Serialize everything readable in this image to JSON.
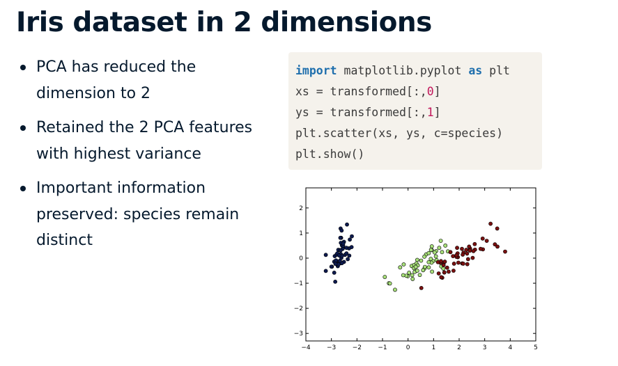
{
  "slide": {
    "title": "Iris dataset in 2 dimensions",
    "bullets": [
      "PCA has reduced the dimension to 2",
      "Retained the 2 PCA features with highest variance",
      "Important information preserved: species remain distinct"
    ]
  },
  "code": {
    "line1": {
      "kw1": "import",
      "mid": " matplotlib.pyplot ",
      "kw2": "as",
      "rest": " plt"
    },
    "line2": {
      "pre": "xs = transformed[:,",
      "num": "0",
      "post": "]"
    },
    "line3": {
      "pre": "ys = transformed[:,",
      "num": "1",
      "post": "]"
    },
    "line4": {
      "text": "plt.scatter(xs, ys, c=species)"
    },
    "line5": {
      "text": "plt.show()"
    }
  },
  "colors": {
    "setosa": "#0d1a4f",
    "versicolor": "#a8e07a",
    "virginica": "#7a1010",
    "keyword": "#1f6fad",
    "number": "#c2185b",
    "code_bg": "#f5f2ec"
  },
  "chart_data": {
    "type": "scatter",
    "title": "",
    "xlabel": "",
    "ylabel": "",
    "xlim": [
      -4,
      5
    ],
    "ylim": [
      -3.3,
      2.8
    ],
    "xticks": [
      -4,
      -3,
      -2,
      -1,
      0,
      1,
      2,
      3,
      4,
      5
    ],
    "xtick_labels": [
      "−4",
      "−3",
      "−2",
      "−1",
      "0",
      "1",
      "2",
      "3",
      "4",
      "5"
    ],
    "yticks": [
      -3,
      -2,
      -1,
      0,
      1,
      2
    ],
    "ytick_labels": [
      "−3",
      "−2",
      "−1",
      "0",
      "1",
      "2"
    ],
    "grid": false,
    "series": [
      {
        "color": "#0d1a4f",
        "points": [
          [
            -2.68,
            0.32
          ],
          [
            -2.71,
            -0.18
          ],
          [
            -2.89,
            -0.14
          ],
          [
            -2.75,
            -0.32
          ],
          [
            -2.73,
            0.33
          ],
          [
            -2.28,
            0.74
          ],
          [
            -2.82,
            -0.09
          ],
          [
            -2.63,
            0.16
          ],
          [
            -2.89,
            -0.58
          ],
          [
            -2.67,
            -0.11
          ],
          [
            -2.51,
            0.65
          ],
          [
            -2.61,
            0.01
          ],
          [
            -2.79,
            -0.24
          ],
          [
            -3.22,
            -0.51
          ],
          [
            -2.64,
            1.18
          ],
          [
            -2.39,
            1.34
          ],
          [
            -2.62,
            0.81
          ],
          [
            -2.65,
            0.31
          ],
          [
            -2.2,
            0.87
          ],
          [
            -2.59,
            0.51
          ],
          [
            -2.31,
            0.39
          ],
          [
            -2.54,
            0.43
          ],
          [
            -3.22,
            0.13
          ],
          [
            -2.3,
            0.1
          ],
          [
            -2.36,
            -0.04
          ],
          [
            -2.51,
            -0.15
          ],
          [
            -2.47,
            0.13
          ],
          [
            -2.56,
            0.37
          ],
          [
            -2.64,
            0.31
          ],
          [
            -2.63,
            -0.2
          ],
          [
            -2.59,
            -0.2
          ],
          [
            -2.41,
            0.41
          ],
          [
            -2.65,
            0.81
          ],
          [
            -2.6,
            1.1
          ],
          [
            -2.67,
            -0.11
          ],
          [
            -2.87,
            0.08
          ],
          [
            -2.63,
            0.61
          ],
          [
            -2.8,
            0.14
          ],
          [
            -2.98,
            -0.34
          ],
          [
            -2.59,
            0.09
          ],
          [
            -2.77,
            0.19
          ],
          [
            -2.85,
            -0.94
          ],
          [
            -3.0,
            -0.34
          ],
          [
            -2.41,
            0.19
          ],
          [
            -2.21,
            0.44
          ],
          [
            -2.72,
            -0.25
          ],
          [
            -2.54,
            0.5
          ],
          [
            -2.84,
            -0.23
          ],
          [
            -2.54,
            0.58
          ],
          [
            -2.7,
            0.11
          ]
        ]
      },
      {
        "color": "#a8e07a",
        "points": [
          [
            1.28,
            0.69
          ],
          [
            0.93,
            0.32
          ],
          [
            1.46,
            0.5
          ],
          [
            0.18,
            -0.83
          ],
          [
            1.09,
            0.07
          ],
          [
            0.64,
            -0.42
          ],
          [
            1.1,
            0.28
          ],
          [
            -0.75,
            -1.0
          ],
          [
            1.04,
            0.23
          ],
          [
            -0.01,
            -0.72
          ],
          [
            -0.51,
            -1.26
          ],
          [
            0.51,
            -0.1
          ],
          [
            0.26,
            -0.55
          ],
          [
            0.98,
            -0.12
          ],
          [
            -0.17,
            -0.25
          ],
          [
            0.93,
            0.47
          ],
          [
            0.66,
            -0.35
          ],
          [
            0.23,
            -0.33
          ],
          [
            0.94,
            -0.54
          ],
          [
            0.04,
            -0.58
          ],
          [
            1.12,
            -0.08
          ],
          [
            0.36,
            -0.07
          ],
          [
            1.3,
            -0.33
          ],
          [
            0.92,
            -0.18
          ],
          [
            0.71,
            0.15
          ],
          [
            0.9,
            0.33
          ],
          [
            1.33,
            0.24
          ],
          [
            1.56,
            0.27
          ],
          [
            0.81,
            -0.16
          ],
          [
            -0.31,
            -0.37
          ],
          [
            -0.07,
            -0.7
          ],
          [
            -0.19,
            -0.68
          ],
          [
            0.14,
            -0.31
          ],
          [
            1.38,
            -0.42
          ],
          [
            0.59,
            -0.48
          ],
          [
            0.81,
            0.2
          ],
          [
            1.22,
            0.41
          ],
          [
            0.81,
            -0.37
          ],
          [
            0.24,
            -0.27
          ],
          [
            0.16,
            -0.68
          ],
          [
            0.46,
            -0.67
          ],
          [
            0.89,
            -0.03
          ],
          [
            0.23,
            -0.4
          ],
          [
            -0.71,
            -1.01
          ],
          [
            0.36,
            -0.5
          ],
          [
            0.33,
            -0.21
          ],
          [
            0.38,
            -0.29
          ],
          [
            0.64,
            0.06
          ],
          [
            -0.91,
            -0.75
          ],
          [
            0.3,
            -0.35
          ]
        ]
      },
      {
        "color": "#7a1010",
        "points": [
          [
            2.53,
            0.01
          ],
          [
            1.42,
            -0.57
          ],
          [
            2.62,
            0.34
          ],
          [
            1.97,
            -0.18
          ],
          [
            2.35,
            -0.04
          ],
          [
            3.4,
            0.55
          ],
          [
            0.52,
            -1.19
          ],
          [
            2.93,
            0.35
          ],
          [
            2.32,
            -0.24
          ],
          [
            2.92,
            0.78
          ],
          [
            1.66,
            0.24
          ],
          [
            1.8,
            -0.22
          ],
          [
            2.17,
            0.22
          ],
          [
            1.34,
            -0.78
          ],
          [
            1.59,
            -0.54
          ],
          [
            1.9,
            0.12
          ],
          [
            1.95,
            0.04
          ],
          [
            3.49,
            1.18
          ],
          [
            3.8,
            0.26
          ],
          [
            1.3,
            -0.76
          ],
          [
            2.43,
            0.38
          ],
          [
            1.2,
            -0.61
          ],
          [
            3.5,
            0.46
          ],
          [
            1.39,
            -0.2
          ],
          [
            2.28,
            0.33
          ],
          [
            2.61,
            0.56
          ],
          [
            1.26,
            -0.18
          ],
          [
            1.29,
            -0.12
          ],
          [
            2.12,
            -0.21
          ],
          [
            2.39,
            0.46
          ],
          [
            2.84,
            0.37
          ],
          [
            3.23,
            1.37
          ],
          [
            2.16,
            -0.22
          ],
          [
            1.44,
            -0.14
          ],
          [
            1.78,
            -0.5
          ],
          [
            3.08,
            0.69
          ],
          [
            2.14,
            0.14
          ],
          [
            1.9,
            0.05
          ],
          [
            1.17,
            -0.16
          ],
          [
            2.11,
            0.37
          ],
          [
            2.31,
            0.18
          ],
          [
            1.92,
            0.41
          ],
          [
            1.42,
            -0.57
          ],
          [
            2.56,
            0.28
          ],
          [
            2.42,
            0.3
          ],
          [
            1.94,
            0.19
          ],
          [
            1.53,
            -0.38
          ],
          [
            1.76,
            0.08
          ],
          [
            1.9,
            0.12
          ],
          [
            1.39,
            -0.28
          ]
        ]
      }
    ]
  }
}
